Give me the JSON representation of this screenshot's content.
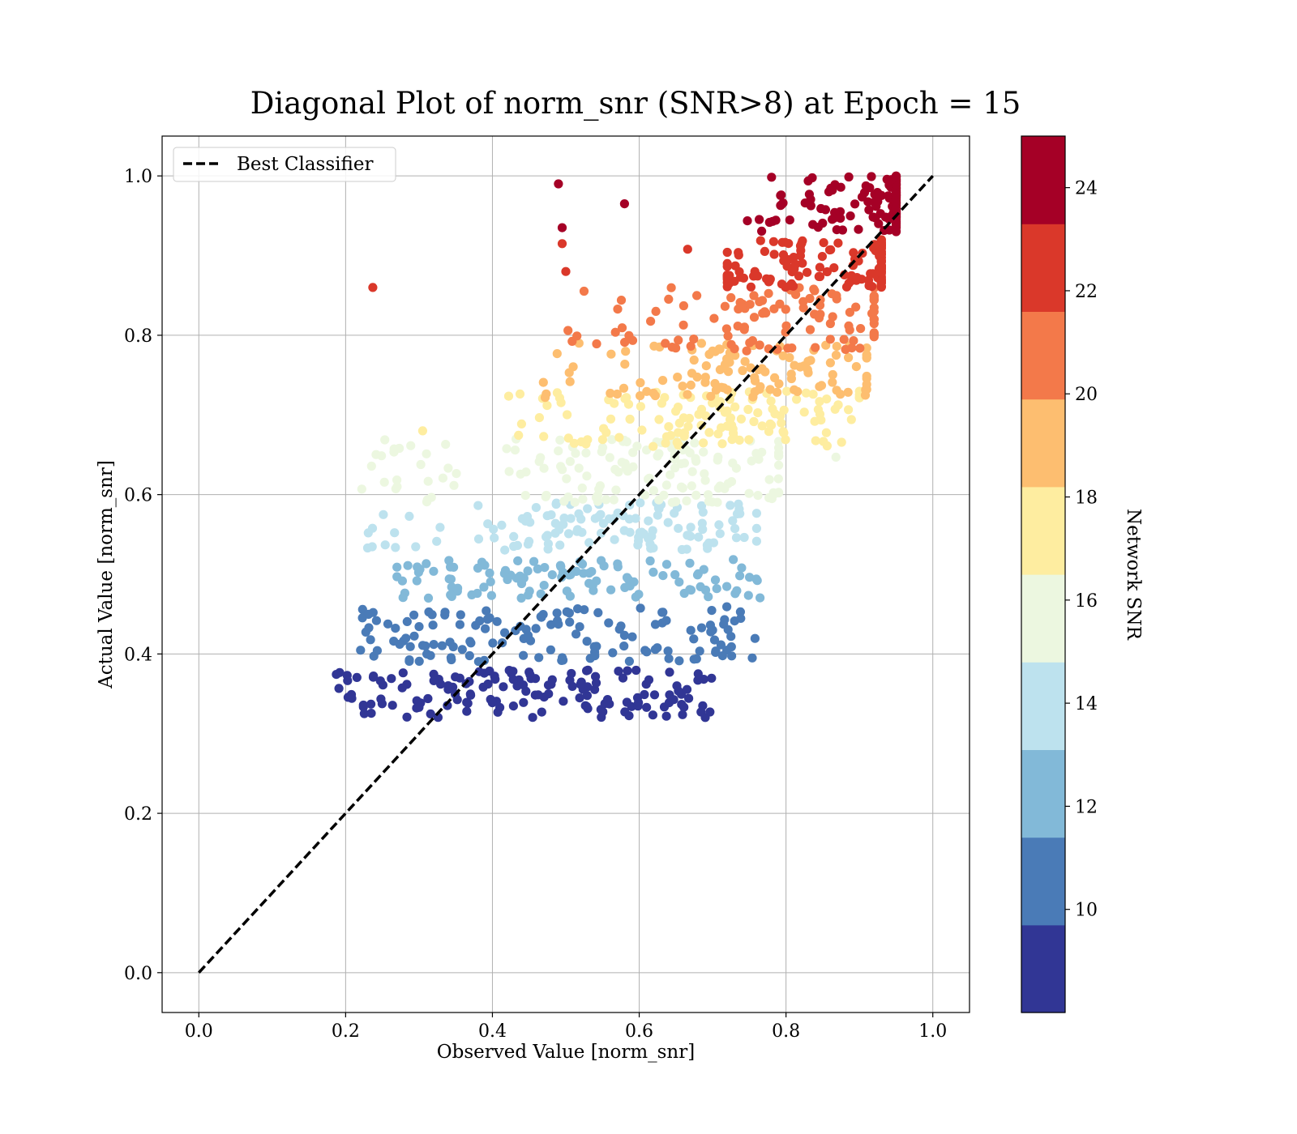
{
  "chart_data": {
    "type": "scatter",
    "title": "Diagonal Plot of norm_snr (SNR>8) at Epoch = 15",
    "xlabel": "Observed Value [norm_snr]",
    "ylabel": "Actual Value [norm_snr]",
    "xlim": [
      -0.05,
      1.05
    ],
    "ylim": [
      -0.05,
      1.05
    ],
    "xticks": [
      "0.0",
      "0.2",
      "0.4",
      "0.6",
      "0.8",
      "1.0"
    ],
    "yticks": [
      "0.0",
      "0.2",
      "0.4",
      "0.6",
      "0.8",
      "1.0"
    ],
    "grid": true,
    "legend": {
      "position": "top-left",
      "entries": [
        "Best Classifier"
      ]
    },
    "reference_line": {
      "name": "Best Classifier",
      "style": "dashed",
      "color": "#000000",
      "x": [
        0.0,
        1.0
      ],
      "y": [
        0.0,
        1.0
      ]
    },
    "colorbar": {
      "label": "Network SNR",
      "range": [
        8,
        25
      ],
      "ticks": [
        "10",
        "12",
        "14",
        "16",
        "18",
        "20",
        "22",
        "24"
      ],
      "bands": [
        {
          "from": 8,
          "to": 9.7,
          "color": "#313695"
        },
        {
          "from": 9.7,
          "to": 11.4,
          "color": "#4a7bb7"
        },
        {
          "from": 11.4,
          "to": 13.1,
          "color": "#82b9d8"
        },
        {
          "from": 13.1,
          "to": 14.8,
          "color": "#bde2ee"
        },
        {
          "from": 14.8,
          "to": 16.5,
          "color": "#ecf7e0"
        },
        {
          "from": 16.5,
          "to": 18.2,
          "color": "#feeda0"
        },
        {
          "from": 18.2,
          "to": 19.9,
          "color": "#fdbe70"
        },
        {
          "from": 19.9,
          "to": 21.6,
          "color": "#f3794a"
        },
        {
          "from": 21.6,
          "to": 23.3,
          "color": "#da382a"
        },
        {
          "from": 23.3,
          "to": 25,
          "color": "#a50026"
        }
      ]
    },
    "point_clusters": [
      {
        "snr": 8.9,
        "count": 150,
        "x_range": [
          0.18,
          0.7
        ],
        "y_range": [
          0.32,
          0.38
        ],
        "diag_bias": 0.0
      },
      {
        "snr": 10.6,
        "count": 140,
        "x_range": [
          0.22,
          0.76
        ],
        "y_range": [
          0.39,
          0.46
        ],
        "diag_bias": 0.15
      },
      {
        "snr": 12.2,
        "count": 110,
        "x_range": [
          0.27,
          0.78
        ],
        "y_range": [
          0.47,
          0.52
        ],
        "diag_bias": 0.3
      },
      {
        "snr": 14.0,
        "count": 120,
        "x_range": [
          0.23,
          0.76
        ],
        "y_range": [
          0.53,
          0.59
        ],
        "diag_bias": 0.45
      },
      {
        "snr": 15.6,
        "count": 150,
        "x_range": [
          0.22,
          0.79
        ],
        "y_range": [
          0.59,
          0.67
        ],
        "diag_bias": 0.55
      },
      {
        "snr": 17.3,
        "count": 130,
        "x_range": [
          0.42,
          0.9
        ],
        "y_range": [
          0.66,
          0.73
        ],
        "diag_bias": 0.65
      },
      {
        "snr": 19.0,
        "count": 110,
        "x_range": [
          0.45,
          0.91
        ],
        "y_range": [
          0.72,
          0.79
        ],
        "diag_bias": 0.7
      },
      {
        "snr": 20.8,
        "count": 110,
        "x_range": [
          0.49,
          0.92
        ],
        "y_range": [
          0.78,
          0.86
        ],
        "diag_bias": 0.8
      },
      {
        "snr": 22.4,
        "count": 140,
        "x_range": [
          0.72,
          0.93
        ],
        "y_range": [
          0.86,
          0.92
        ],
        "diag_bias": 0.85
      },
      {
        "snr": 24.2,
        "count": 160,
        "x_range": [
          0.74,
          0.95
        ],
        "y_range": [
          0.93,
          1.0
        ],
        "diag_bias": 0.95
      }
    ],
    "notable_points": [
      {
        "x": 0.49,
        "y": 0.99,
        "snr": 24.2
      },
      {
        "x": 0.58,
        "y": 0.965,
        "snr": 24.2
      },
      {
        "x": 0.495,
        "y": 0.935,
        "snr": 24.2
      },
      {
        "x": 0.495,
        "y": 0.915,
        "snr": 22.4
      },
      {
        "x": 0.5,
        "y": 0.88,
        "snr": 22.4
      },
      {
        "x": 0.237,
        "y": 0.86,
        "snr": 22.4
      },
      {
        "x": 0.503,
        "y": 0.806,
        "snr": 20.8
      },
      {
        "x": 0.518,
        "y": 0.79,
        "snr": 19.0
      },
      {
        "x": 0.305,
        "y": 0.68,
        "snr": 17.3
      },
      {
        "x": 0.222,
        "y": 0.607,
        "snr": 15.6
      },
      {
        "x": 0.23,
        "y": 0.533,
        "snr": 14.0
      },
      {
        "x": 0.754,
        "y": 0.395,
        "snr": 10.6
      },
      {
        "x": 0.61,
        "y": 0.333,
        "snr": 8.9
      },
      {
        "x": 0.666,
        "y": 0.908,
        "snr": 22.4
      },
      {
        "x": 0.868,
        "y": 0.647,
        "snr": 15.6
      }
    ]
  }
}
